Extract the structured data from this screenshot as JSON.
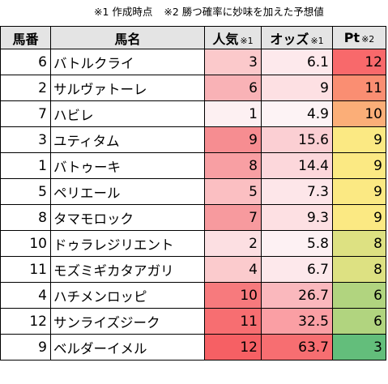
{
  "notes": [
    "※1 作成時点",
    "※2 勝つ確率に妙味を加えた予想値"
  ],
  "headers": {
    "no": "馬番",
    "name": "馬名",
    "popularity": "人気",
    "popularity_note": "※1",
    "odds": "オッズ",
    "odds_note": "※1",
    "pt": "Pt",
    "pt_note": "※2"
  },
  "rows": [
    {
      "no": "6",
      "name": "バトルクライ",
      "popularity": "3",
      "odds": "6.1",
      "pt": "12"
    },
    {
      "no": "2",
      "name": "サルヴァトーレ",
      "popularity": "6",
      "odds": "9",
      "pt": "11"
    },
    {
      "no": "7",
      "name": "ハビレ",
      "popularity": "1",
      "odds": "4.9",
      "pt": "10"
    },
    {
      "no": "3",
      "name": "ユティタム",
      "popularity": "9",
      "odds": "15.6",
      "pt": "9"
    },
    {
      "no": "1",
      "name": "バトゥーキ",
      "popularity": "8",
      "odds": "14.4",
      "pt": "9"
    },
    {
      "no": "5",
      "name": "ペリエール",
      "popularity": "5",
      "odds": "7.3",
      "pt": "9"
    },
    {
      "no": "8",
      "name": "タマモロック",
      "popularity": "7",
      "odds": "9.3",
      "pt": "9"
    },
    {
      "no": "10",
      "name": "ドゥラレジリエント",
      "popularity": "2",
      "odds": "5.8",
      "pt": "8"
    },
    {
      "no": "11",
      "name": "モズミギカタアガリ",
      "popularity": "4",
      "odds": "6.7",
      "pt": "8"
    },
    {
      "no": "4",
      "name": "ハチメンロッピ",
      "popularity": "10",
      "odds": "26.7",
      "pt": "6"
    },
    {
      "no": "12",
      "name": "サンライズジーク",
      "popularity": "11",
      "odds": "32.5",
      "pt": "6"
    },
    {
      "no": "9",
      "name": "ベルダーイメル",
      "popularity": "12",
      "odds": "63.7",
      "pt": "3"
    }
  ],
  "colors": {
    "popularity": [
      "#fbc9cb",
      "#f9b2b6",
      "#fdf0f2",
      "#f68d91",
      "#f89fa3",
      "#fbbfc2",
      "#f79a9e",
      "#fcdfe2",
      "#fbcbcd",
      "#f77a7d",
      "#f76e71",
      "#f66064"
    ],
    "odds": [
      "#fde9ec",
      "#fde0e3",
      "#fdf3f5",
      "#fbcfd3",
      "#fcd7db",
      "#fde6e9",
      "#fde0e3",
      "#fdf1f3",
      "#fde8eb",
      "#fab8bd",
      "#fa9fa4",
      "#f76e71"
    ],
    "pt": [
      "#f8696b",
      "#fa8e72",
      "#fbae78",
      "#fbe983",
      "#fbe983",
      "#fbe983",
      "#fbe983",
      "#dde182",
      "#dde182",
      "#b1d47f",
      "#b1d47f",
      "#63be7b"
    ]
  }
}
